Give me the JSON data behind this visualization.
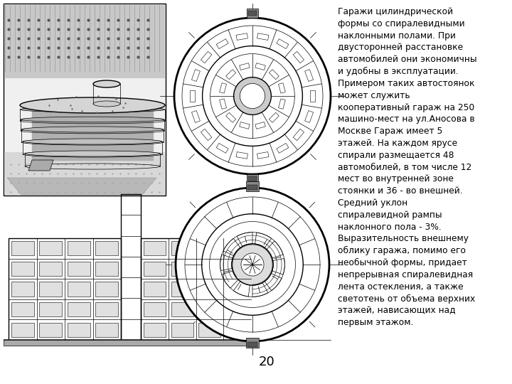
{
  "background_color": "#ffffff",
  "text_content": "Гаражи цилиндрической\nформы со спиралевидными\nнаклонными полами. При\nдвусторонней расстановке\nавтомобилей они экономичны\nи удобны в эксплуатации.\nПримером таких автостоянок\nможет служить\nкооперативный гараж на 250\nмашино-мест на ул.Аносова в\nМоскве Гараж имеет 5\nэтажей. На каждом ярусе\nспирали размещается 48\nавтомобилей, в том числе 12\nмест во внутренней зоне\nстоянки и 36 - во внешней.\nСредний уклон\nспиралевидной рампы\nнаклонного пола - 3%.\nВыразительность внешнему\nоблику гаража, помимо его\nнеобычной формы, придает\nнепрерывная спиралевидная\nлента остекления, а также\nсветотень от объема верхних\nэтажей, нависающих над\nпервым этажом.",
  "page_number": "20",
  "text_fontsize": 8.8,
  "page_number_fontsize": 13,
  "line_color": "#000000",
  "lw_thin": 0.5,
  "lw_med": 1.0,
  "lw_thick": 2.0
}
